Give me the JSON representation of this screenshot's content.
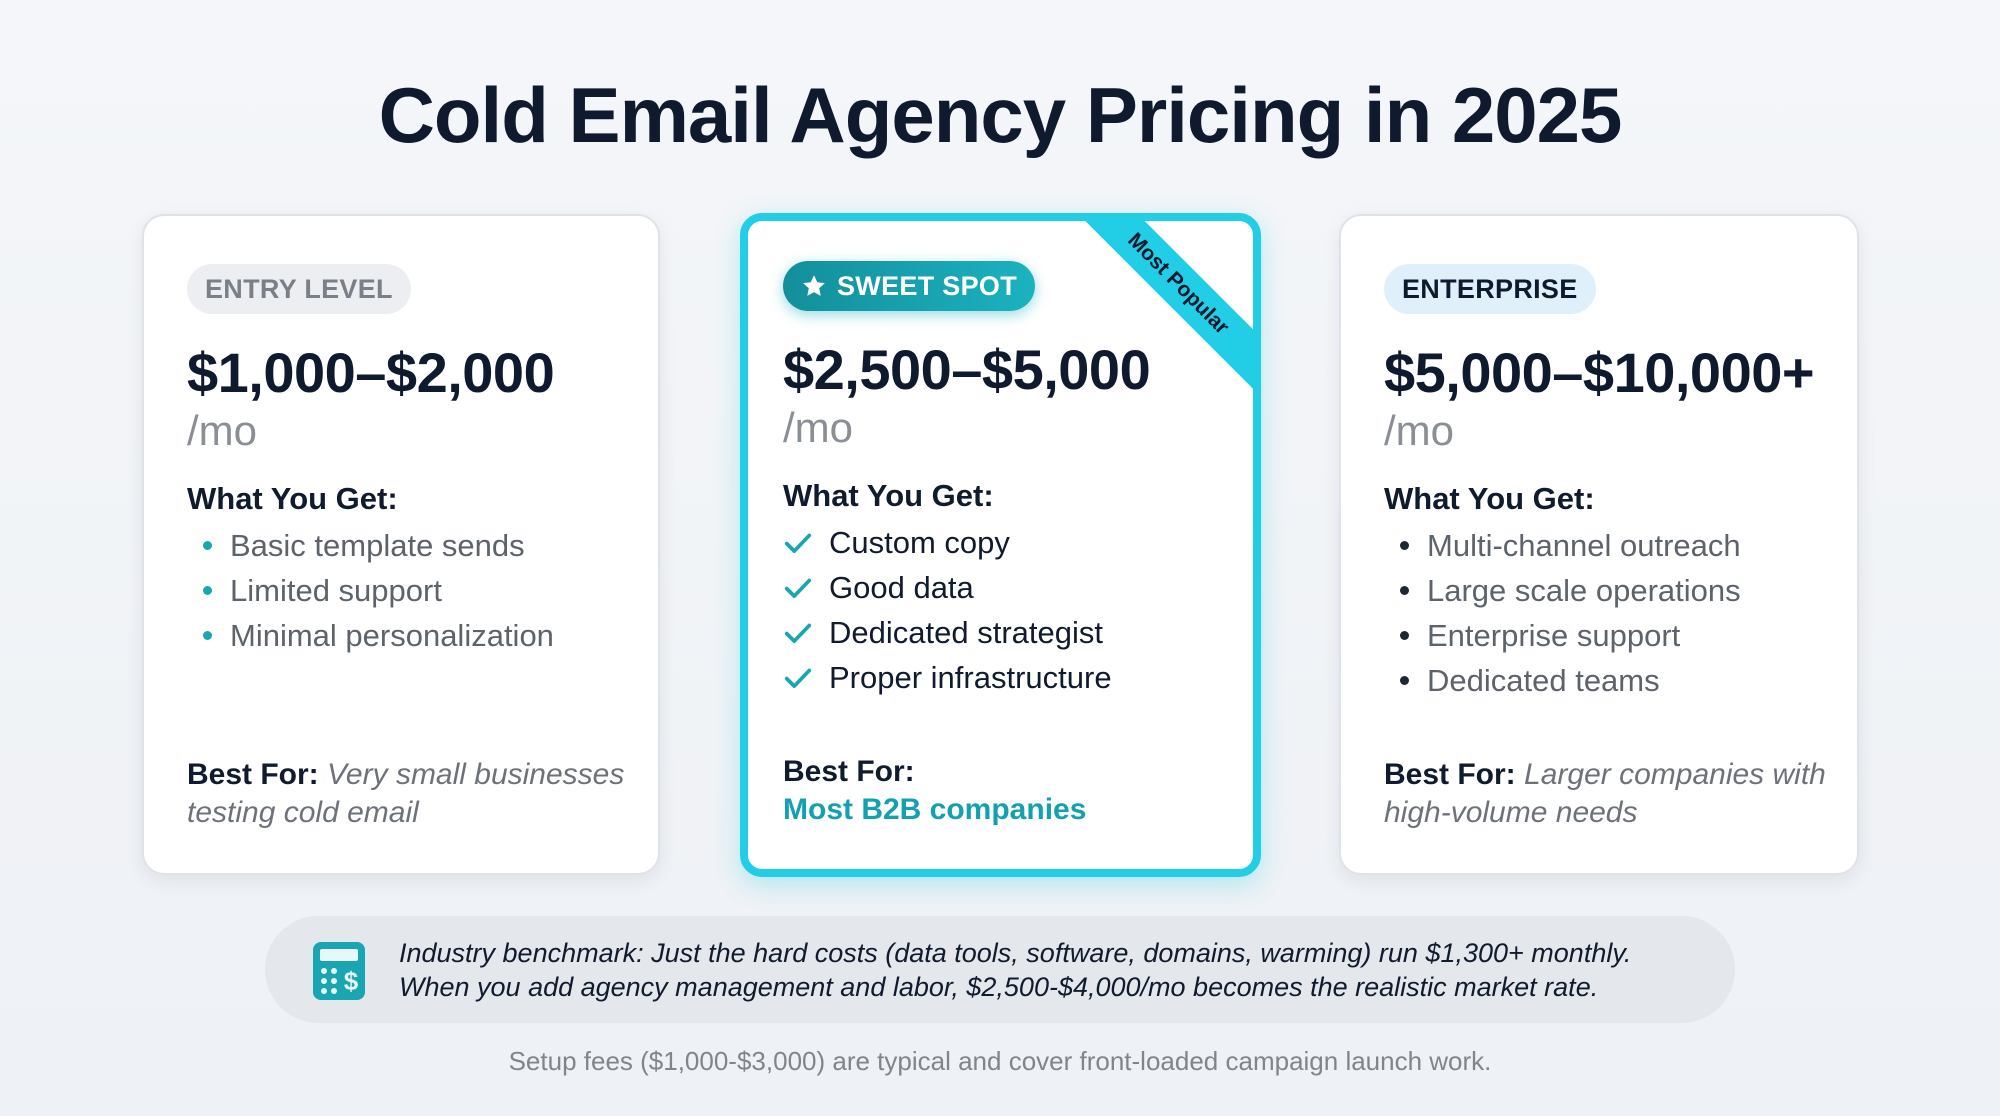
{
  "title": "Cold Email Agency Pricing in 2025",
  "plans": [
    {
      "badge": "ENTRY LEVEL",
      "price": "$1,000–$2,000",
      "period": "/mo",
      "features_heading": "What You Get:",
      "features": [
        "Basic template sends",
        "Limited support",
        "Minimal personalization"
      ],
      "best_for_label": "Best For:",
      "best_for": "Very small businesses testing cold email"
    },
    {
      "badge": "SWEET SPOT",
      "ribbon": "Most Popular",
      "price": "$2,500–$5,000",
      "period": "/mo",
      "features_heading": "What You Get:",
      "features": [
        "Custom copy",
        "Good data",
        "Dedicated strategist",
        "Proper infrastructure"
      ],
      "best_for_label": "Best For:",
      "best_for": "Most B2B companies"
    },
    {
      "badge": "ENTERPRISE",
      "price": "$5,000–$10,000+",
      "period": "/mo",
      "features_heading": "What You Get:",
      "features": [
        "Multi-channel outreach",
        "Large scale operations",
        "Enterprise support",
        "Dedicated teams"
      ],
      "best_for_label": "Best For:",
      "best_for": "Larger companies with high-volume needs"
    }
  ],
  "benchmark": [
    "Industry benchmark: Just the hard costs (data tools, software, domains, warming) run $1,300+ monthly.",
    "When you add agency management and labor, $2,500-$4,000/mo becomes the realistic market rate."
  ],
  "footnote": "Setup fees ($1,000-$3,000) are typical and cover front-loaded campaign launch work."
}
